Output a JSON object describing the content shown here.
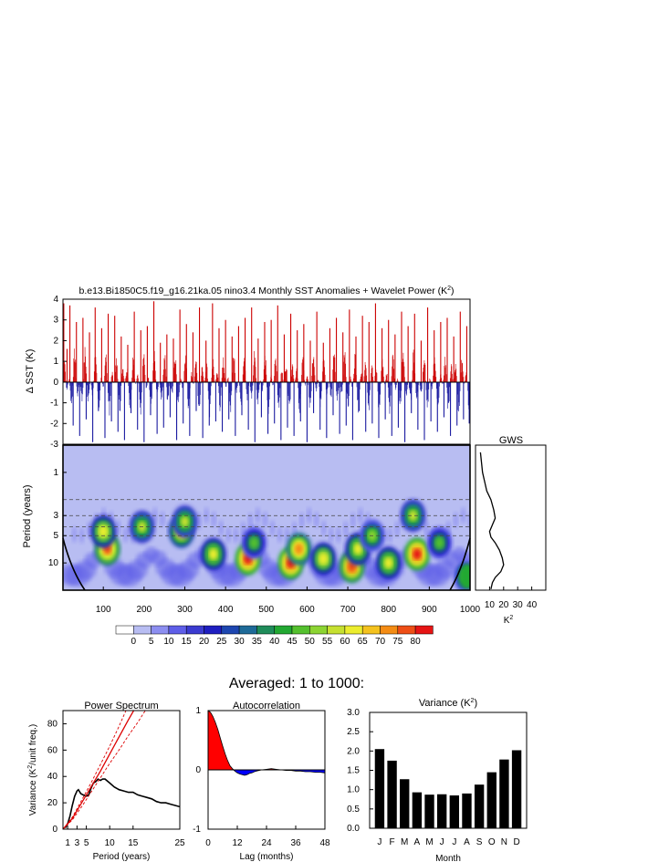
{
  "figure": {
    "title_main": "b.e13.Bi1850C5.f19_g16.21ka.05 nino3.4 Monthly SST Anomalies + Wavelet Power (K",
    "title_sup": "2",
    "title_close": ")",
    "section_title": "Averaged: 1 to 1000:"
  },
  "colors": {
    "positive": "#cc0000",
    "negative": "#1a1aa0",
    "line": "#000000",
    "fit": "#dd0000",
    "background_power": "#b8bdf2"
  },
  "chart_data": [
    {
      "id": "sst_anomaly",
      "type": "bar",
      "xlabel": "",
      "ylabel": "Δ SST (K)",
      "xlim": [
        1,
        1000
      ],
      "ylim": [
        -3,
        4
      ],
      "yticks": [
        "4",
        "3",
        "2",
        "1",
        "0",
        "-1",
        "-2",
        "-3"
      ],
      "ytick_values": [
        4,
        3,
        2,
        1,
        0,
        -1,
        -2,
        -3
      ],
      "spikes": [
        [
          3,
          3.8
        ],
        [
          11,
          1.6
        ],
        [
          18,
          3.7
        ],
        [
          26,
          -2.1
        ],
        [
          34,
          2.9
        ],
        [
          42,
          -2.6
        ],
        [
          50,
          3.1
        ],
        [
          58,
          -1.8
        ],
        [
          66,
          2.4
        ],
        [
          74,
          -2.9
        ],
        [
          80,
          3.6
        ],
        [
          88,
          -1.4
        ],
        [
          96,
          2.6
        ],
        [
          104,
          -2.7
        ],
        [
          112,
          3.3
        ],
        [
          120,
          -1.9
        ],
        [
          128,
          3.2
        ],
        [
          136,
          -2.4
        ],
        [
          144,
          2.2
        ],
        [
          152,
          -2.8
        ],
        [
          160,
          1.8
        ],
        [
          168,
          -1.5
        ],
        [
          176,
          3.4
        ],
        [
          184,
          -2.3
        ],
        [
          192,
          2.5
        ],
        [
          200,
          -2.9
        ],
        [
          208,
          2.7
        ],
        [
          216,
          -1.6
        ],
        [
          224,
          3.9
        ],
        [
          232,
          -2.5
        ],
        [
          240,
          1.9
        ],
        [
          248,
          -2.2
        ],
        [
          256,
          2.3
        ],
        [
          264,
          -1.7
        ],
        [
          272,
          2.1
        ],
        [
          280,
          -2.8
        ],
        [
          288,
          3.5
        ],
        [
          296,
          -2.0
        ],
        [
          304,
          2.8
        ],
        [
          312,
          -2.6
        ],
        [
          320,
          2.4
        ],
        [
          328,
          -1.4
        ],
        [
          336,
          3.6
        ],
        [
          344,
          -2.7
        ],
        [
          352,
          2.0
        ],
        [
          360,
          -2.1
        ],
        [
          368,
          3.8
        ],
        [
          376,
          -1.9
        ],
        [
          384,
          2.6
        ],
        [
          392,
          -2.4
        ],
        [
          400,
          3.0
        ],
        [
          408,
          -1.8
        ],
        [
          416,
          2.2
        ],
        [
          424,
          -2.6
        ],
        [
          432,
          2.7
        ],
        [
          440,
          -1.6
        ],
        [
          448,
          3.1
        ],
        [
          456,
          -2.3
        ],
        [
          464,
          3.6
        ],
        [
          472,
          -2.9
        ],
        [
          480,
          2.1
        ],
        [
          488,
          -1.7
        ],
        [
          496,
          2.9
        ],
        [
          504,
          -2.5
        ],
        [
          512,
          3.0
        ],
        [
          520,
          -2.0
        ],
        [
          528,
          3.7
        ],
        [
          536,
          -2.8
        ],
        [
          544,
          2.3
        ],
        [
          552,
          -2.2
        ],
        [
          560,
          3.3
        ],
        [
          568,
          -2.6
        ],
        [
          576,
          2.5
        ],
        [
          584,
          -1.9
        ],
        [
          592,
          2.8
        ],
        [
          600,
          -2.9
        ],
        [
          608,
          2.0
        ],
        [
          616,
          -1.5
        ],
        [
          624,
          3.4
        ],
        [
          632,
          -2.3
        ],
        [
          640,
          1.9
        ],
        [
          648,
          -2.7
        ],
        [
          656,
          2.6
        ],
        [
          664,
          -1.6
        ],
        [
          672,
          3.1
        ],
        [
          680,
          -2.5
        ],
        [
          688,
          2.4
        ],
        [
          696,
          -2.1
        ],
        [
          704,
          3.5
        ],
        [
          712,
          -2.8
        ],
        [
          720,
          2.2
        ],
        [
          728,
          -1.4
        ],
        [
          736,
          3.2
        ],
        [
          744,
          -2.4
        ],
        [
          752,
          2.9
        ],
        [
          760,
          -2.0
        ],
        [
          768,
          3.8
        ],
        [
          776,
          -2.7
        ],
        [
          784,
          2.6
        ],
        [
          792,
          -1.8
        ],
        [
          800,
          3.0
        ],
        [
          808,
          -2.6
        ],
        [
          816,
          2.3
        ],
        [
          824,
          -2.2
        ],
        [
          832,
          3.4
        ],
        [
          840,
          -2.9
        ],
        [
          848,
          2.7
        ],
        [
          856,
          -1.5
        ],
        [
          864,
          3.3
        ],
        [
          872,
          -2.3
        ],
        [
          880,
          2.0
        ],
        [
          888,
          -2.8
        ],
        [
          896,
          3.6
        ],
        [
          904,
          -1.9
        ],
        [
          912,
          2.5
        ],
        [
          920,
          -2.4
        ],
        [
          928,
          2.9
        ],
        [
          936,
          -1.7
        ],
        [
          944,
          3.1
        ],
        [
          952,
          -2.6
        ],
        [
          960,
          2.2
        ],
        [
          968,
          -2.1
        ],
        [
          976,
          3.4
        ],
        [
          984,
          -1.8
        ],
        [
          992,
          2.7
        ],
        [
          998,
          -2.0
        ]
      ]
    },
    {
      "id": "wavelet_power",
      "type": "heatmap",
      "xlabel": "",
      "ylabel": "Period (years)",
      "xlim": [
        1,
        1000
      ],
      "ylim": [
        0.5,
        20
      ],
      "log_y": true,
      "xticks": [
        100,
        200,
        300,
        400,
        500,
        600,
        700,
        800,
        900,
        1000
      ],
      "yticks": [
        1,
        3,
        5,
        10
      ],
      "dashed_periods": [
        2,
        3,
        4,
        5
      ],
      "colorbar_levels": [
        "0",
        "5",
        "10",
        "15",
        "20",
        "25",
        "30",
        "35",
        "40",
        "45",
        "50",
        "55",
        "60",
        "65",
        "70",
        "75",
        "80"
      ],
      "colorbar_colors": [
        "#ffffff",
        "#b8bdf2",
        "#8c8ef0",
        "#5e5ee8",
        "#3b3bd0",
        "#1e1ec0",
        "#1d46b0",
        "#1e6a98",
        "#1f8c5a",
        "#22a832",
        "#54c02e",
        "#8cd432",
        "#c6e030",
        "#eced2e",
        "#f4c21e",
        "#f48c14",
        "#ee4e16",
        "#e61414"
      ],
      "hotspots": [
        {
          "x": 110,
          "period": 7,
          "power": 75
        },
        {
          "x": 100,
          "period": 4.5,
          "power": 62
        },
        {
          "x": 195,
          "period": 4,
          "power": 55
        },
        {
          "x": 292,
          "period": 4.5,
          "power": 68
        },
        {
          "x": 300,
          "period": 3.5,
          "power": 55
        },
        {
          "x": 370,
          "period": 8,
          "power": 60
        },
        {
          "x": 455,
          "period": 9,
          "power": 80
        },
        {
          "x": 470,
          "period": 6,
          "power": 48
        },
        {
          "x": 560,
          "period": 10,
          "power": 80
        },
        {
          "x": 580,
          "period": 7,
          "power": 72
        },
        {
          "x": 640,
          "period": 9,
          "power": 62
        },
        {
          "x": 710,
          "period": 11,
          "power": 78
        },
        {
          "x": 725,
          "period": 7,
          "power": 60
        },
        {
          "x": 760,
          "period": 5,
          "power": 52
        },
        {
          "x": 800,
          "period": 10,
          "power": 60
        },
        {
          "x": 870,
          "period": 8,
          "power": 80
        },
        {
          "x": 860,
          "period": 3,
          "power": 55
        },
        {
          "x": 925,
          "period": 6,
          "power": 48
        },
        {
          "x": 990,
          "period": 14,
          "power": 50
        }
      ]
    },
    {
      "id": "global_wavelet",
      "type": "line",
      "title": "GWS",
      "xlabel": "K",
      "xlabel_sup": "2",
      "xticks": [
        10,
        20,
        30,
        40
      ],
      "xlim": [
        0,
        50
      ],
      "points": [
        [
          3.5,
          0.6
        ],
        [
          5,
          1.0
        ],
        [
          8,
          1.6
        ],
        [
          11,
          2.0
        ],
        [
          13,
          2.6
        ],
        [
          14,
          3.2
        ],
        [
          12,
          3.8
        ],
        [
          10,
          4.5
        ],
        [
          11,
          5.2
        ],
        [
          14,
          6.0
        ],
        [
          17,
          7.2
        ],
        [
          19,
          8.8
        ],
        [
          20,
          10.5
        ],
        [
          18,
          12.5
        ],
        [
          14,
          14.5
        ],
        [
          12,
          16.5
        ],
        [
          11,
          19.5
        ]
      ]
    },
    {
      "id": "power_spectrum",
      "type": "line",
      "title": "Power Spectrum",
      "xlabel": "Period (years)",
      "ylabel_pre": "Variance (K",
      "ylabel_sup": "2",
      "ylabel_post": "/unit freq.)",
      "xticks": [
        "1",
        "3",
        "5",
        "10",
        "15",
        "25"
      ],
      "xtick_values": [
        1,
        3,
        5,
        10,
        15,
        25
      ],
      "yticks": [
        "0",
        "20",
        "40",
        "60",
        "80"
      ],
      "ytick_values": [
        0,
        20,
        40,
        60,
        80
      ],
      "xlim": [
        0,
        25
      ],
      "ylim": [
        0,
        90
      ],
      "series": [
        {
          "points": [
            [
              0.5,
              1
            ],
            [
              1,
              4
            ],
            [
              1.5,
              10
            ],
            [
              2,
              18
            ],
            [
              2.5,
              25
            ],
            [
              3,
              29
            ],
            [
              3.3,
              30
            ],
            [
              3.8,
              27
            ],
            [
              4.3,
              26
            ],
            [
              5,
              25
            ],
            [
              5.5,
              26
            ],
            [
              6,
              31
            ],
            [
              6.5,
              35
            ],
            [
              7,
              36
            ],
            [
              7.5,
              38
            ],
            [
              8,
              37
            ],
            [
              8.5,
              38
            ],
            [
              9,
              38
            ],
            [
              10,
              35
            ],
            [
              11,
              32
            ],
            [
              12,
              30
            ],
            [
              13,
              29
            ],
            [
              14,
              28
            ],
            [
              15,
              28
            ],
            [
              16,
              26
            ],
            [
              17,
              25
            ],
            [
              18,
              24
            ],
            [
              19,
              23
            ],
            [
              20,
              21
            ],
            [
              21,
              20
            ],
            [
              22,
              20
            ],
            [
              23,
              19
            ],
            [
              24,
              18
            ],
            [
              25,
              17
            ]
          ]
        },
        {
          "points": [
            [
              0,
              0
            ],
            [
              2,
              8
            ],
            [
              4,
              20
            ],
            [
              6,
              32
            ],
            [
              8,
              44
            ],
            [
              10,
              57
            ],
            [
              12,
              70
            ],
            [
              14,
              83
            ],
            [
              15.3,
              91
            ]
          ]
        },
        {
          "points": [
            [
              0,
              0
            ],
            [
              2,
              9
            ],
            [
              4,
              22
            ],
            [
              6,
              35
            ],
            [
              8,
              49
            ],
            [
              10,
              63
            ],
            [
              12,
              78
            ],
            [
              13.6,
              91
            ]
          ]
        },
        {
          "points": [
            [
              0,
              0
            ],
            [
              2,
              7
            ],
            [
              4,
              17
            ],
            [
              6,
              28
            ],
            [
              8,
              39
            ],
            [
              10,
              50
            ],
            [
              12,
              60
            ],
            [
              14,
              71
            ],
            [
              16,
              81
            ],
            [
              17.8,
              91
            ]
          ]
        }
      ]
    },
    {
      "id": "autocorrelation",
      "type": "area",
      "title": "Autocorrelation",
      "xlabel": "Lag (months)",
      "xticks": [
        "0",
        "12",
        "24",
        "36",
        "48"
      ],
      "xtick_values": [
        0,
        12,
        24,
        36,
        48
      ],
      "yticks": [
        "1",
        "0",
        "-1"
      ],
      "ytick_values": [
        1,
        0,
        -1
      ],
      "xlim": [
        0,
        48
      ],
      "ylim": [
        -1,
        1
      ],
      "points": [
        [
          0,
          1
        ],
        [
          1,
          0.97
        ],
        [
          2,
          0.9
        ],
        [
          3,
          0.8
        ],
        [
          4,
          0.68
        ],
        [
          5,
          0.54
        ],
        [
          6,
          0.4
        ],
        [
          7,
          0.27
        ],
        [
          8,
          0.16
        ],
        [
          9,
          0.07
        ],
        [
          10,
          0.02
        ],
        [
          11,
          -0.02
        ],
        [
          12,
          -0.05
        ],
        [
          13,
          -0.07
        ],
        [
          14,
          -0.08
        ],
        [
          15,
          -0.09
        ],
        [
          16,
          -0.08
        ],
        [
          17,
          -0.06
        ],
        [
          18,
          -0.05
        ],
        [
          19,
          -0.03
        ],
        [
          20,
          -0.02
        ],
        [
          21,
          -0.01
        ],
        [
          22,
          0.0
        ],
        [
          24,
          0.01
        ],
        [
          26,
          0.02
        ],
        [
          28,
          0.01
        ],
        [
          30,
          0.0
        ],
        [
          32,
          -0.01
        ],
        [
          34,
          -0.01
        ],
        [
          36,
          -0.02
        ],
        [
          38,
          -0.02
        ],
        [
          40,
          -0.03
        ],
        [
          42,
          -0.03
        ],
        [
          44,
          -0.04
        ],
        [
          46,
          -0.04
        ],
        [
          48,
          -0.05
        ]
      ]
    },
    {
      "id": "variance_by_month",
      "type": "bar",
      "title_pre": "Variance (K",
      "title_sup": "2",
      "title_post": ")",
      "xlabel": "Month",
      "categories": [
        "J",
        "F",
        "M",
        "A",
        "M",
        "J",
        "J",
        "A",
        "S",
        "O",
        "N",
        "D"
      ],
      "values": [
        2.05,
        1.75,
        1.27,
        0.93,
        0.87,
        0.88,
        0.85,
        0.9,
        1.13,
        1.45,
        1.78,
        2.02
      ],
      "yticks": [
        "0.0",
        "0.5",
        "1.0",
        "1.5",
        "2.0",
        "2.5",
        "3.0"
      ],
      "ytick_values": [
        0,
        0.5,
        1,
        1.5,
        2,
        2.5,
        3
      ],
      "ylim": [
        0,
        3
      ]
    }
  ]
}
